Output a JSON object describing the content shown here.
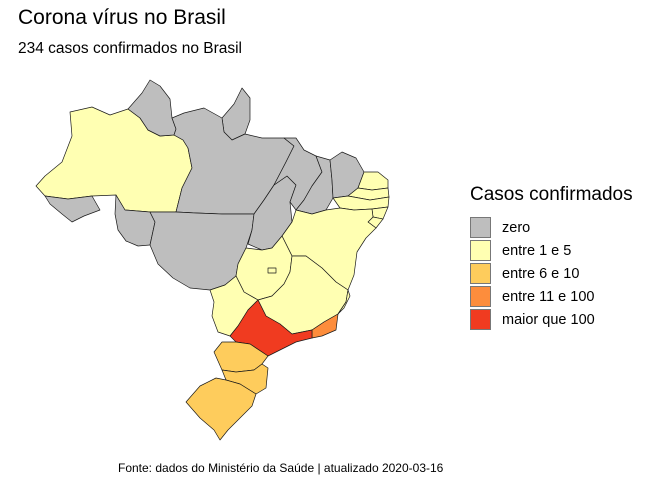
{
  "title": "Corona vírus no Brasil",
  "subtitle": "234 casos confirmados no Brasil",
  "legend": {
    "title": "Casos confirmados",
    "items": [
      {
        "label": "zero",
        "color": "#BEBEBE"
      },
      {
        "label": "entre 1 e 5",
        "color": "#FFFFB2"
      },
      {
        "label": "entre 6 e 10",
        "color": "#FECC5C"
      },
      {
        "label": "entre 11 e 100",
        "color": "#FD8D3C"
      },
      {
        "label": "maior que 100",
        "color": "#F03B20"
      }
    ]
  },
  "caption": "Fonte: dados do Ministério da Saúde | atualizado 2020-03-16",
  "states": [
    {
      "name": "AM",
      "category": 1
    },
    {
      "name": "RR",
      "category": 0
    },
    {
      "name": "AP",
      "category": 0
    },
    {
      "name": "PA",
      "category": 0
    },
    {
      "name": "AC",
      "category": 0
    },
    {
      "name": "RO",
      "category": 0
    },
    {
      "name": "MT",
      "category": 0
    },
    {
      "name": "TO",
      "category": 0
    },
    {
      "name": "MA",
      "category": 0
    },
    {
      "name": "PI",
      "category": 0
    },
    {
      "name": "CE",
      "category": 0
    },
    {
      "name": "RN",
      "category": 1
    },
    {
      "name": "PB",
      "category": 1
    },
    {
      "name": "PE",
      "category": 1
    },
    {
      "name": "AL",
      "category": 1
    },
    {
      "name": "SE",
      "category": 1
    },
    {
      "name": "BA",
      "category": 1
    },
    {
      "name": "GO",
      "category": 1
    },
    {
      "name": "DF",
      "category": 1
    },
    {
      "name": "MS",
      "category": 1
    },
    {
      "name": "MG",
      "category": 1
    },
    {
      "name": "ES",
      "category": 1
    },
    {
      "name": "RJ",
      "category": 3
    },
    {
      "name": "SP",
      "category": 4
    },
    {
      "name": "PR",
      "category": 2
    },
    {
      "name": "SC",
      "category": 2
    },
    {
      "name": "RS",
      "category": 2
    }
  ]
}
